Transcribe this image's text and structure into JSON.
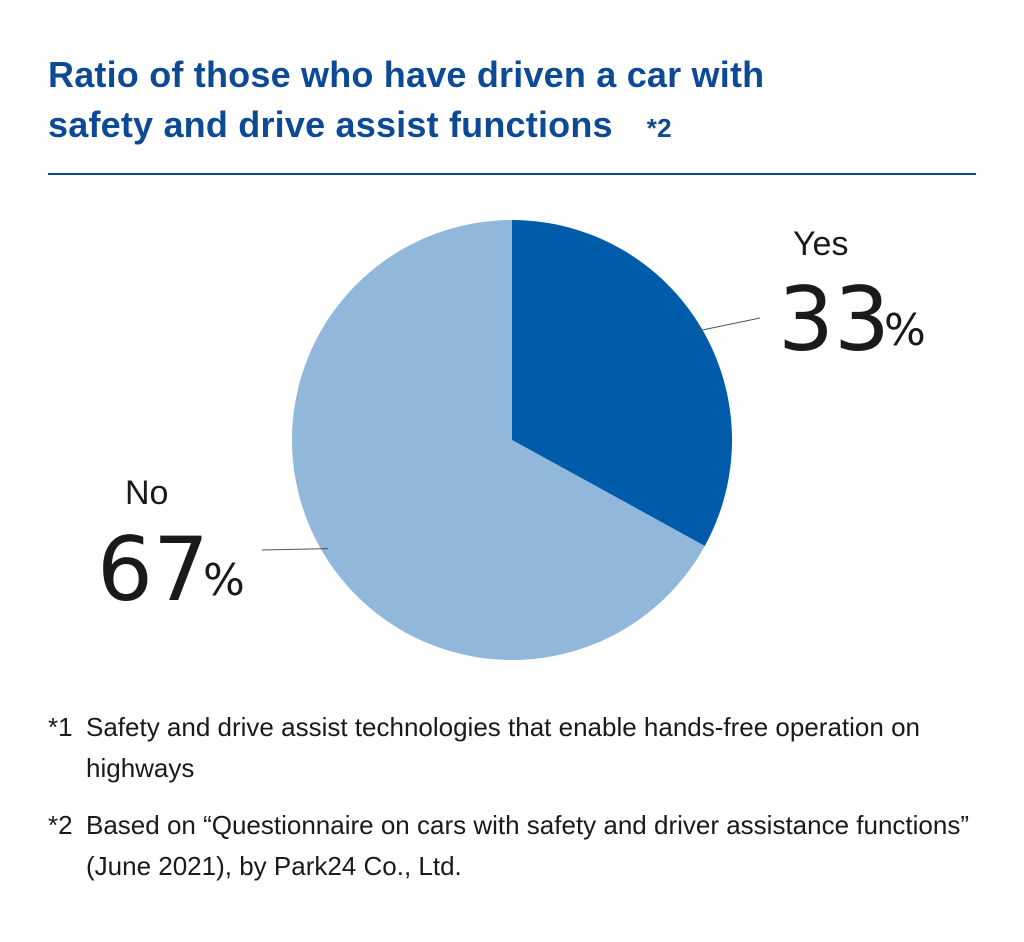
{
  "title": {
    "line1": "Ratio of those who have driven a car with",
    "line2": "safety and drive assist functions",
    "note_ref": "*2"
  },
  "chart_data": {
    "type": "pie",
    "title": "Ratio of those who have driven a car with safety and drive assist functions",
    "unit": "%",
    "slices": [
      {
        "label": "Yes",
        "value": 33,
        "color": "#005bab"
      },
      {
        "label": "No",
        "value": 67,
        "color": "#91b7da"
      }
    ],
    "start_angle_deg": 0,
    "direction": "clockwise",
    "legend": "none"
  },
  "notes": [
    {
      "mark": "*1",
      "text": "Safety and drive assist technologies that enable hands-free operation on highways"
    },
    {
      "mark": "*2",
      "text": "Based on “Questionnaire on cars with safety and driver assistance functions” (June 2021), by Park24 Co., Ltd."
    }
  ]
}
